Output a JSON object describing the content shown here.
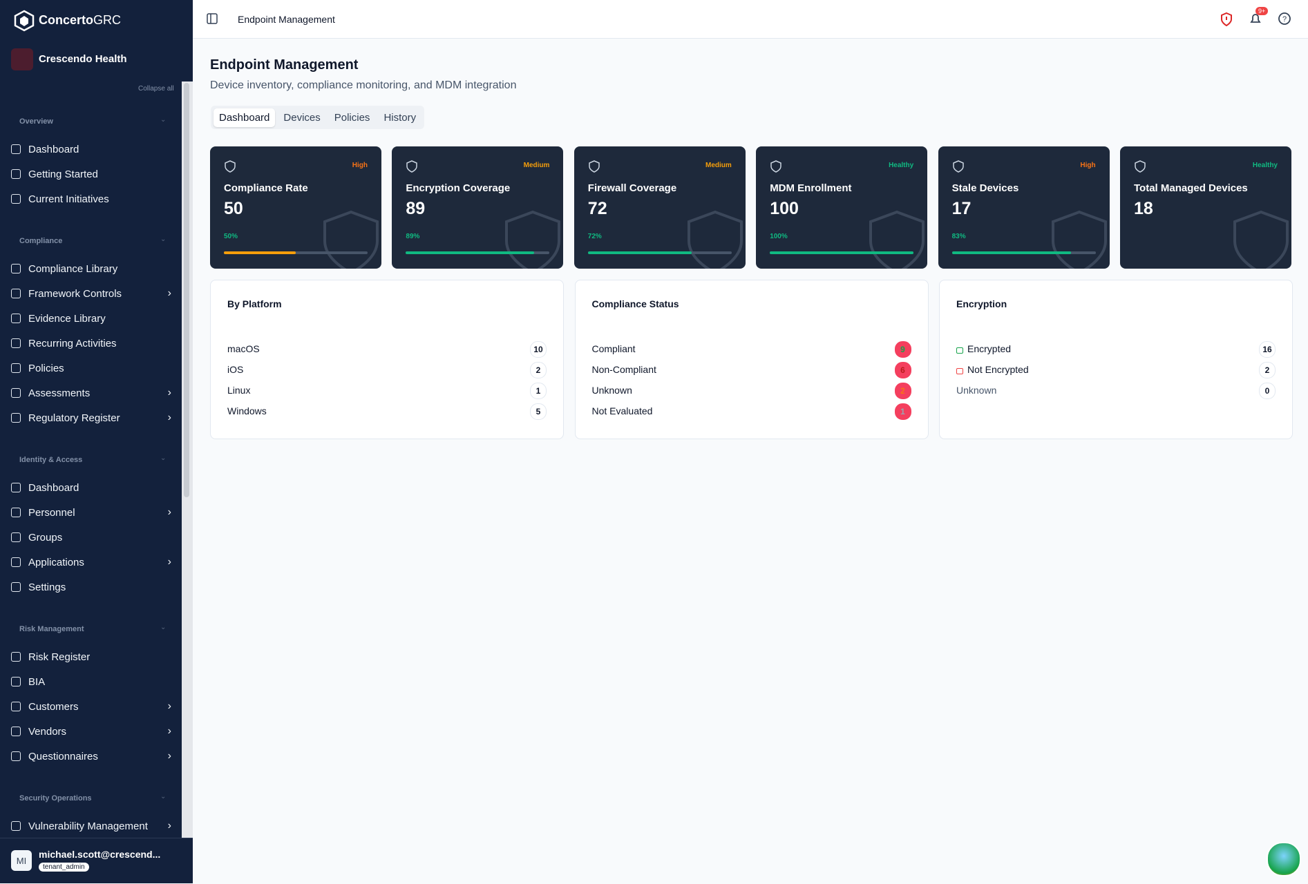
{
  "brand": {
    "name": "Concerto",
    "suffix": "GRC"
  },
  "org": "Crescendo Health",
  "collapse": "Collapse all",
  "breadcrumb": "Endpoint Management",
  "notifications": "9+",
  "sidebar": [
    {
      "title": "Overview",
      "items": [
        {
          "label": "Dashboard"
        },
        {
          "label": "Getting Started"
        },
        {
          "label": "Current Initiatives"
        }
      ]
    },
    {
      "title": "Compliance",
      "items": [
        {
          "label": "Compliance Library"
        },
        {
          "label": "Framework Controls",
          "expandable": true
        },
        {
          "label": "Evidence Library"
        },
        {
          "label": "Recurring Activities"
        },
        {
          "label": "Policies"
        },
        {
          "label": "Assessments",
          "expandable": true
        },
        {
          "label": "Regulatory Register",
          "expandable": true
        }
      ]
    },
    {
      "title": "Identity & Access",
      "items": [
        {
          "label": "Dashboard"
        },
        {
          "label": "Personnel",
          "expandable": true
        },
        {
          "label": "Groups"
        },
        {
          "label": "Applications",
          "expandable": true
        },
        {
          "label": "Settings"
        }
      ]
    },
    {
      "title": "Risk Management",
      "items": [
        {
          "label": "Risk Register"
        },
        {
          "label": "BIA"
        },
        {
          "label": "Customers",
          "expandable": true
        },
        {
          "label": "Vendors",
          "expandable": true
        },
        {
          "label": "Questionnaires",
          "expandable": true
        }
      ]
    },
    {
      "title": "Security Operations",
      "items": [
        {
          "label": "Vulnerability Management",
          "expandable": true
        }
      ]
    }
  ],
  "user": {
    "initials": "MI",
    "email": "michael.scott@crescend...",
    "role": "tenant_admin"
  },
  "page": {
    "title": "Endpoint Management",
    "subtitle": "Device inventory, compliance monitoring, and MDM integration",
    "tabs": [
      "Dashboard",
      "Devices",
      "Policies",
      "History"
    ],
    "active_tab": 0
  },
  "stats": [
    {
      "label": "Compliance Rate",
      "value": 50,
      "level": "High",
      "level_color": "#f97316",
      "bar_color": "#f59e0b",
      "progress": {
        "value": 50,
        "label": "50%"
      }
    },
    {
      "label": "Encryption Coverage",
      "value": 89,
      "level": "Medium",
      "level_color": "#f59e0b",
      "bar_color": "#10b981",
      "progress": {
        "value": 89,
        "label": "89%"
      }
    },
    {
      "label": "Firewall Coverage",
      "value": 72,
      "level": "Medium",
      "level_color": "#f59e0b",
      "bar_color": "#10b981",
      "progress": {
        "value": 72,
        "label": "72%"
      }
    },
    {
      "label": "MDM Enrollment",
      "value": 100,
      "level": "Healthy",
      "level_color": "#10b981",
      "bar_color": "#10b981",
      "progress": {
        "value": 100,
        "label": "100%"
      }
    },
    {
      "label": "Stale Devices",
      "value": 17,
      "level": "High",
      "level_color": "#f97316",
      "bar_color": "#10b981",
      "progress": {
        "value": 83,
        "label": "83%"
      }
    },
    {
      "label": "Total Managed Devices",
      "value": 18,
      "level": "Healthy",
      "level_color": "#10b981"
    }
  ],
  "panels": [
    {
      "title": "By Platform",
      "rows": [
        {
          "label": "macOS",
          "count": 10
        },
        {
          "label": "iOS",
          "count": 2
        },
        {
          "label": "Linux",
          "count": 1
        },
        {
          "label": "Windows",
          "count": 5
        }
      ]
    },
    {
      "title": "Compliance Status",
      "badge": "red",
      "rows": [
        {
          "label": "Compliant",
          "count": 9,
          "color": "#16a34a"
        },
        {
          "label": "Non-Compliant",
          "count": 6,
          "color": "#b91c1c"
        },
        {
          "label": "Unknown",
          "count": 2,
          "color": "#f97316"
        },
        {
          "label": "Not Evaluated",
          "count": 1,
          "color": "#9ca3af"
        }
      ]
    },
    {
      "title": "Encryption",
      "rows": [
        {
          "label": "Encrypted",
          "count": 16,
          "icon": "#16a34a"
        },
        {
          "label": "Not Encrypted",
          "count": 2,
          "icon": "#ef4444"
        },
        {
          "label": "Unknown",
          "count": 0,
          "text_color": "#475569"
        }
      ]
    }
  ]
}
